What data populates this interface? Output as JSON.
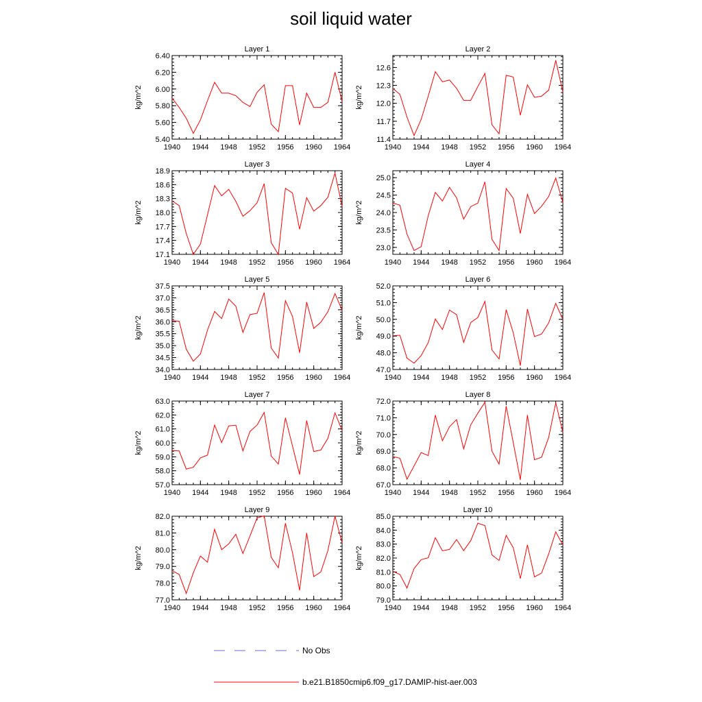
{
  "title": "soil liquid water",
  "legend": {
    "items": [
      {
        "label": "No Obs",
        "color": "#6a6ad6",
        "style": "dashed"
      },
      {
        "label": "b.e21.B1850cmip6.f09_g17.DAMIP-hist-aer.003",
        "color": "#ff0000",
        "style": "solid"
      }
    ]
  },
  "chart_data": [
    {
      "type": "line",
      "title": "Layer 1",
      "ylabel": "kg/m^2",
      "xlim": [
        1940,
        1964
      ],
      "ylim": [
        5.4,
        6.4
      ],
      "xticks": [
        "1940",
        "1944",
        "1948",
        "1952",
        "1956",
        "1960",
        "1964"
      ],
      "yticks": [
        "5.40",
        "5.60",
        "5.80",
        "6.00",
        "6.20",
        "6.40"
      ],
      "x": [
        1940,
        1941,
        1942,
        1943,
        1944,
        1945,
        1946,
        1947,
        1948,
        1949,
        1950,
        1951,
        1952,
        1953,
        1954,
        1955,
        1956,
        1957,
        1958,
        1959,
        1960,
        1961,
        1962,
        1963,
        1964
      ],
      "series": [
        {
          "color": "#ff0000",
          "values": [
            5.89,
            5.78,
            5.65,
            5.47,
            5.63,
            5.86,
            6.08,
            5.95,
            5.95,
            5.92,
            5.84,
            5.79,
            5.96,
            6.05,
            5.58,
            5.49,
            6.04,
            6.04,
            5.57,
            5.95,
            5.78,
            5.78,
            5.84,
            6.2,
            5.85
          ]
        }
      ]
    },
    {
      "type": "line",
      "title": "Layer 2",
      "ylabel": "kg/m^2",
      "xlim": [
        1940,
        1964
      ],
      "ylim": [
        11.4,
        12.8
      ],
      "xticks": [
        "1940",
        "1944",
        "1948",
        "1952",
        "1956",
        "1960",
        "1964"
      ],
      "yticks": [
        "11.4",
        "11.7",
        "12.0",
        "12.3",
        "12.6"
      ],
      "x": [
        1940,
        1941,
        1942,
        1943,
        1944,
        1945,
        1946,
        1947,
        1948,
        1949,
        1950,
        1951,
        1952,
        1953,
        1954,
        1955,
        1956,
        1957,
        1958,
        1959,
        1960,
        1961,
        1962,
        1963,
        1964
      ],
      "series": [
        {
          "color": "#ff0000",
          "values": [
            12.25,
            12.15,
            11.77,
            11.46,
            11.73,
            12.12,
            12.53,
            12.36,
            12.39,
            12.25,
            12.05,
            12.05,
            12.28,
            12.5,
            11.64,
            11.49,
            12.47,
            12.44,
            11.8,
            12.31,
            12.1,
            12.12,
            12.22,
            12.72,
            12.19
          ]
        }
      ]
    },
    {
      "type": "line",
      "title": "Layer 3",
      "ylabel": "kg/m^2",
      "xlim": [
        1940,
        1964
      ],
      "ylim": [
        17.1,
        18.9
      ],
      "xticks": [
        "1940",
        "1944",
        "1948",
        "1952",
        "1956",
        "1960",
        "1964"
      ],
      "yticks": [
        "17.1",
        "17.4",
        "17.7",
        "18.0",
        "18.3",
        "18.6",
        "18.9"
      ],
      "x": [
        1940,
        1941,
        1942,
        1943,
        1944,
        1945,
        1946,
        1947,
        1948,
        1949,
        1950,
        1951,
        1952,
        1953,
        1954,
        1955,
        1956,
        1957,
        1958,
        1959,
        1960,
        1961,
        1962,
        1963,
        1964
      ],
      "series": [
        {
          "color": "#ff0000",
          "values": [
            18.25,
            18.15,
            17.55,
            17.1,
            17.32,
            17.95,
            18.58,
            18.36,
            18.5,
            18.24,
            17.92,
            18.04,
            18.21,
            18.62,
            17.35,
            17.1,
            18.52,
            18.42,
            17.64,
            18.32,
            18.03,
            18.15,
            18.33,
            18.85,
            18.13
          ]
        }
      ]
    },
    {
      "type": "line",
      "title": "Layer 4",
      "ylabel": "kg/m^2",
      "xlim": [
        1940,
        1964
      ],
      "ylim": [
        22.8,
        25.2
      ],
      "xticks": [
        "1940",
        "1944",
        "1948",
        "1952",
        "1956",
        "1960",
        "1964"
      ],
      "yticks": [
        "23.0",
        "23.5",
        "24.0",
        "24.5",
        "25.0"
      ],
      "x": [
        1940,
        1941,
        1942,
        1943,
        1944,
        1945,
        1946,
        1947,
        1948,
        1949,
        1950,
        1951,
        1952,
        1953,
        1954,
        1955,
        1956,
        1957,
        1958,
        1959,
        1960,
        1961,
        1962,
        1963,
        1964
      ],
      "series": [
        {
          "color": "#ff0000",
          "values": [
            24.27,
            24.21,
            23.38,
            22.91,
            23.02,
            23.91,
            24.58,
            24.33,
            24.72,
            24.42,
            23.81,
            24.17,
            24.27,
            24.88,
            23.23,
            22.91,
            24.69,
            24.41,
            23.4,
            24.52,
            23.97,
            24.18,
            24.46,
            24.99,
            24.29
          ]
        }
      ]
    },
    {
      "type": "line",
      "title": "Layer 5",
      "ylabel": "kg/m^2",
      "xlim": [
        1940,
        1964
      ],
      "ylim": [
        34.0,
        37.5
      ],
      "xticks": [
        "1940",
        "1944",
        "1948",
        "1952",
        "1956",
        "1960",
        "1964"
      ],
      "yticks": [
        "34.0",
        "34.5",
        "35.0",
        "35.5",
        "36.0",
        "36.5",
        "37.0",
        "37.5"
      ],
      "x": [
        1940,
        1941,
        1942,
        1943,
        1944,
        1945,
        1946,
        1947,
        1948,
        1949,
        1950,
        1951,
        1952,
        1953,
        1954,
        1955,
        1956,
        1957,
        1958,
        1959,
        1960,
        1961,
        1962,
        1963,
        1964
      ],
      "series": [
        {
          "color": "#ff0000",
          "values": [
            36.05,
            36.02,
            34.85,
            34.35,
            34.65,
            35.65,
            36.43,
            36.13,
            36.95,
            36.65,
            35.55,
            36.3,
            36.35,
            37.22,
            34.9,
            34.48,
            36.88,
            36.22,
            34.7,
            36.82,
            35.72,
            35.98,
            36.42,
            37.18,
            36.48
          ]
        }
      ]
    },
    {
      "type": "line",
      "title": "Layer 6",
      "ylabel": "kg/m^2",
      "xlim": [
        1940,
        1964
      ],
      "ylim": [
        47.0,
        52.0
      ],
      "xticks": [
        "1940",
        "1944",
        "1948",
        "1952",
        "1956",
        "1960",
        "1964"
      ],
      "yticks": [
        "47.0",
        "48.0",
        "49.0",
        "50.0",
        "51.0",
        "52.0"
      ],
      "x": [
        1940,
        1941,
        1942,
        1943,
        1944,
        1945,
        1946,
        1947,
        1948,
        1949,
        1950,
        1951,
        1952,
        1953,
        1954,
        1955,
        1956,
        1957,
        1958,
        1959,
        1960,
        1961,
        1962,
        1963,
        1964
      ],
      "series": [
        {
          "color": "#ff0000",
          "values": [
            49.02,
            49.05,
            47.68,
            47.38,
            47.83,
            48.61,
            50.02,
            49.39,
            50.55,
            50.28,
            48.62,
            49.81,
            50.11,
            51.07,
            48.17,
            47.63,
            50.58,
            49.2,
            47.23,
            50.61,
            48.97,
            49.12,
            49.78,
            50.95,
            50.0
          ]
        }
      ]
    },
    {
      "type": "line",
      "title": "Layer 7",
      "ylabel": "kg/m^2",
      "xlim": [
        1940,
        1964
      ],
      "ylim": [
        57.0,
        63.0
      ],
      "xticks": [
        "1940",
        "1944",
        "1948",
        "1952",
        "1956",
        "1960",
        "1964"
      ],
      "yticks": [
        "57.0",
        "58.0",
        "59.0",
        "60.0",
        "61.0",
        "62.0",
        "63.0"
      ],
      "x": [
        1940,
        1941,
        1942,
        1943,
        1944,
        1945,
        1946,
        1947,
        1948,
        1949,
        1950,
        1951,
        1952,
        1953,
        1954,
        1955,
        1956,
        1957,
        1958,
        1959,
        1960,
        1961,
        1962,
        1963,
        1964
      ],
      "series": [
        {
          "color": "#ff0000",
          "values": [
            59.45,
            59.42,
            58.12,
            58.25,
            58.92,
            59.12,
            61.28,
            60.02,
            61.22,
            61.27,
            59.42,
            60.82,
            61.28,
            62.18,
            59.05,
            58.48,
            61.8,
            59.77,
            57.73,
            61.6,
            59.38,
            59.49,
            60.33,
            62.15,
            60.88
          ]
        }
      ]
    },
    {
      "type": "line",
      "title": "Layer 8",
      "ylabel": "kg/m^2",
      "xlim": [
        1940,
        1964
      ],
      "ylim": [
        67.0,
        72.0
      ],
      "xticks": [
        "1940",
        "1944",
        "1948",
        "1952",
        "1956",
        "1960",
        "1964"
      ],
      "yticks": [
        "67.0",
        "68.0",
        "69.0",
        "70.0",
        "71.0",
        "72.0"
      ],
      "x": [
        1940,
        1941,
        1942,
        1943,
        1944,
        1945,
        1946,
        1947,
        1948,
        1949,
        1950,
        1951,
        1952,
        1953,
        1954,
        1955,
        1956,
        1957,
        1958,
        1959,
        1960,
        1961,
        1962,
        1963,
        1964
      ],
      "series": [
        {
          "color": "#ff0000",
          "values": [
            68.68,
            68.58,
            67.33,
            68.12,
            68.92,
            68.74,
            71.16,
            69.63,
            70.46,
            70.89,
            69.14,
            70.58,
            71.27,
            71.93,
            69.0,
            68.23,
            71.7,
            69.52,
            67.29,
            71.16,
            68.49,
            68.64,
            69.82,
            71.89,
            70.14
          ]
        }
      ]
    },
    {
      "type": "line",
      "title": "Layer 9",
      "ylabel": "kg/m^2",
      "xlim": [
        1940,
        1964
      ],
      "ylim": [
        77.0,
        82.0
      ],
      "xticks": [
        "1940",
        "1944",
        "1948",
        "1952",
        "1956",
        "1960",
        "1964"
      ],
      "yticks": [
        "77.0",
        "78.0",
        "79.0",
        "80.0",
        "81.0",
        "82.0"
      ],
      "x": [
        1940,
        1941,
        1942,
        1943,
        1944,
        1945,
        1946,
        1947,
        1948,
        1949,
        1950,
        1951,
        1952,
        1953,
        1954,
        1955,
        1956,
        1957,
        1958,
        1959,
        1960,
        1961,
        1962,
        1963,
        1964
      ],
      "series": [
        {
          "color": "#ff0000",
          "values": [
            78.75,
            78.52,
            77.38,
            78.62,
            79.62,
            79.25,
            81.22,
            80.0,
            80.35,
            80.92,
            79.77,
            80.82,
            81.9,
            82.02,
            79.54,
            78.92,
            81.58,
            79.82,
            77.57,
            81.0,
            78.39,
            78.67,
            79.95,
            82.0,
            80.41
          ]
        }
      ]
    },
    {
      "type": "line",
      "title": "Layer 10",
      "ylabel": "kg/m^2",
      "xlim": [
        1940,
        1964
      ],
      "ylim": [
        79.0,
        85.0
      ],
      "xticks": [
        "1940",
        "1944",
        "1948",
        "1952",
        "1956",
        "1960",
        "1964"
      ],
      "yticks": [
        "79.0",
        "80.0",
        "81.0",
        "82.0",
        "83.0",
        "84.0",
        "85.0"
      ],
      "x": [
        1940,
        1941,
        1942,
        1943,
        1944,
        1945,
        1946,
        1947,
        1948,
        1949,
        1950,
        1951,
        1952,
        1953,
        1954,
        1955,
        1956,
        1957,
        1958,
        1959,
        1960,
        1961,
        1962,
        1963,
        1964
      ],
      "series": [
        {
          "color": "#ff0000",
          "values": [
            81.05,
            80.82,
            79.85,
            81.25,
            81.88,
            82.02,
            83.46,
            82.52,
            82.62,
            83.33,
            82.53,
            83.25,
            84.5,
            84.33,
            82.22,
            81.83,
            83.62,
            82.74,
            80.53,
            82.95,
            80.65,
            80.92,
            82.29,
            83.88,
            82.94
          ]
        }
      ]
    }
  ]
}
